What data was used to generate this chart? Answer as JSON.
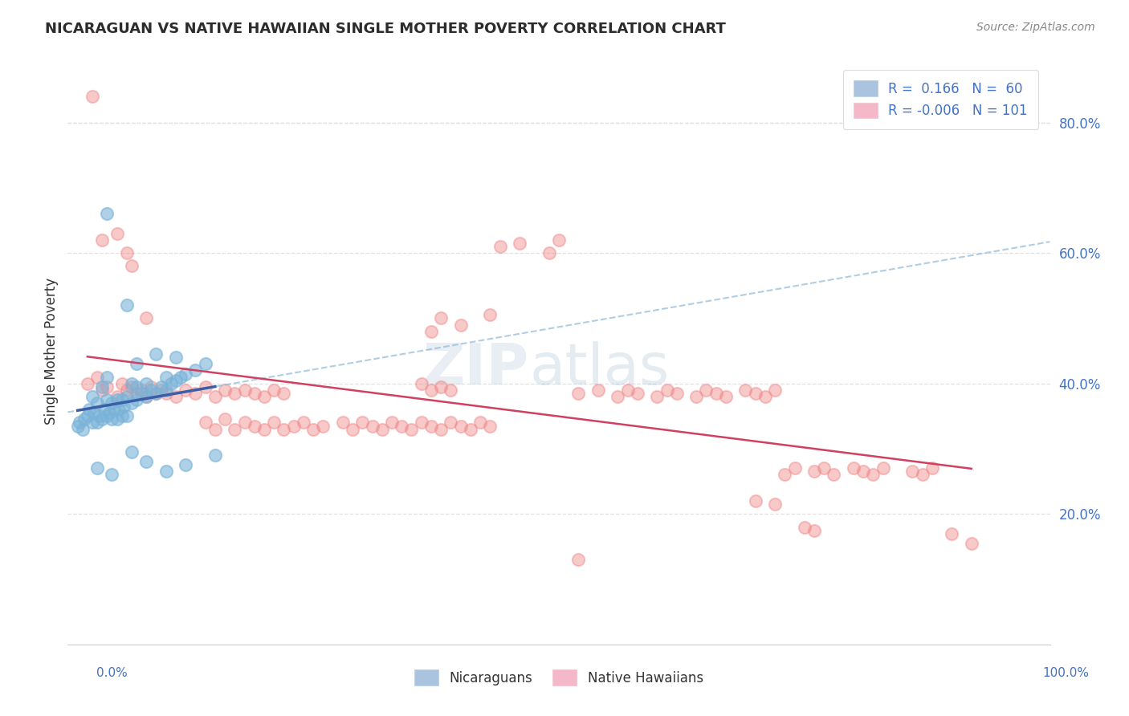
{
  "title": "NICARAGUAN VS NATIVE HAWAIIAN SINGLE MOTHER POVERTY CORRELATION CHART",
  "source": "Source: ZipAtlas.com",
  "ylabel": "Single Mother Poverty",
  "y_ticks": [
    0.2,
    0.4,
    0.6,
    0.8
  ],
  "y_tick_labels": [
    "20.0%",
    "40.0%",
    "60.0%",
    "80.0%"
  ],
  "xlim": [
    0.0,
    1.0
  ],
  "ylim": [
    0.0,
    0.9
  ],
  "watermark": "ZIPatlas",
  "blue_color": "#7ab3d8",
  "pink_color": "#f08888",
  "blue_line_color": "#3a5fa8",
  "pink_line_color": "#d04060",
  "tick_color": "#4472c4",
  "grid_color": "#e0e0e0",
  "nicaraguan_points": [
    [
      0.01,
      0.335
    ],
    [
      0.012,
      0.34
    ],
    [
      0.015,
      0.33
    ],
    [
      0.017,
      0.345
    ],
    [
      0.02,
      0.35
    ],
    [
      0.022,
      0.36
    ],
    [
      0.025,
      0.34
    ],
    [
      0.025,
      0.38
    ],
    [
      0.027,
      0.355
    ],
    [
      0.03,
      0.34
    ],
    [
      0.03,
      0.37
    ],
    [
      0.032,
      0.35
    ],
    [
      0.035,
      0.345
    ],
    [
      0.035,
      0.395
    ],
    [
      0.037,
      0.36
    ],
    [
      0.04,
      0.35
    ],
    [
      0.04,
      0.375
    ],
    [
      0.04,
      0.41
    ],
    [
      0.042,
      0.355
    ],
    [
      0.045,
      0.345
    ],
    [
      0.045,
      0.37
    ],
    [
      0.047,
      0.36
    ],
    [
      0.05,
      0.345
    ],
    [
      0.05,
      0.375
    ],
    [
      0.052,
      0.36
    ],
    [
      0.055,
      0.35
    ],
    [
      0.055,
      0.375
    ],
    [
      0.057,
      0.365
    ],
    [
      0.06,
      0.35
    ],
    [
      0.06,
      0.38
    ],
    [
      0.065,
      0.37
    ],
    [
      0.065,
      0.4
    ],
    [
      0.07,
      0.375
    ],
    [
      0.07,
      0.395
    ],
    [
      0.075,
      0.385
    ],
    [
      0.08,
      0.38
    ],
    [
      0.08,
      0.4
    ],
    [
      0.085,
      0.39
    ],
    [
      0.09,
      0.385
    ],
    [
      0.095,
      0.395
    ],
    [
      0.1,
      0.39
    ],
    [
      0.1,
      0.41
    ],
    [
      0.105,
      0.4
    ],
    [
      0.11,
      0.405
    ],
    [
      0.115,
      0.41
    ],
    [
      0.12,
      0.415
    ],
    [
      0.13,
      0.42
    ],
    [
      0.14,
      0.43
    ],
    [
      0.04,
      0.66
    ],
    [
      0.06,
      0.52
    ],
    [
      0.03,
      0.27
    ],
    [
      0.045,
      0.26
    ],
    [
      0.065,
      0.295
    ],
    [
      0.08,
      0.28
    ],
    [
      0.1,
      0.265
    ],
    [
      0.12,
      0.275
    ],
    [
      0.15,
      0.29
    ],
    [
      0.07,
      0.43
    ],
    [
      0.09,
      0.445
    ],
    [
      0.11,
      0.44
    ]
  ],
  "native_hawaiian_points": [
    [
      0.025,
      0.84
    ],
    [
      0.035,
      0.62
    ],
    [
      0.05,
      0.63
    ],
    [
      0.06,
      0.6
    ],
    [
      0.065,
      0.58
    ],
    [
      0.08,
      0.5
    ],
    [
      0.02,
      0.4
    ],
    [
      0.03,
      0.41
    ],
    [
      0.035,
      0.39
    ],
    [
      0.04,
      0.395
    ],
    [
      0.05,
      0.38
    ],
    [
      0.055,
      0.4
    ],
    [
      0.06,
      0.39
    ],
    [
      0.065,
      0.395
    ],
    [
      0.07,
      0.385
    ],
    [
      0.075,
      0.39
    ],
    [
      0.08,
      0.38
    ],
    [
      0.085,
      0.395
    ],
    [
      0.09,
      0.385
    ],
    [
      0.095,
      0.39
    ],
    [
      0.1,
      0.385
    ],
    [
      0.11,
      0.38
    ],
    [
      0.12,
      0.39
    ],
    [
      0.13,
      0.385
    ],
    [
      0.14,
      0.395
    ],
    [
      0.15,
      0.38
    ],
    [
      0.16,
      0.39
    ],
    [
      0.17,
      0.385
    ],
    [
      0.18,
      0.39
    ],
    [
      0.19,
      0.385
    ],
    [
      0.2,
      0.38
    ],
    [
      0.21,
      0.39
    ],
    [
      0.22,
      0.385
    ],
    [
      0.14,
      0.34
    ],
    [
      0.15,
      0.33
    ],
    [
      0.16,
      0.345
    ],
    [
      0.17,
      0.33
    ],
    [
      0.18,
      0.34
    ],
    [
      0.19,
      0.335
    ],
    [
      0.2,
      0.33
    ],
    [
      0.21,
      0.34
    ],
    [
      0.22,
      0.33
    ],
    [
      0.23,
      0.335
    ],
    [
      0.24,
      0.34
    ],
    [
      0.25,
      0.33
    ],
    [
      0.26,
      0.335
    ],
    [
      0.28,
      0.34
    ],
    [
      0.29,
      0.33
    ],
    [
      0.3,
      0.34
    ],
    [
      0.31,
      0.335
    ],
    [
      0.32,
      0.33
    ],
    [
      0.33,
      0.34
    ],
    [
      0.34,
      0.335
    ],
    [
      0.35,
      0.33
    ],
    [
      0.36,
      0.34
    ],
    [
      0.37,
      0.335
    ],
    [
      0.38,
      0.33
    ],
    [
      0.39,
      0.34
    ],
    [
      0.4,
      0.335
    ],
    [
      0.41,
      0.33
    ],
    [
      0.42,
      0.34
    ],
    [
      0.43,
      0.335
    ],
    [
      0.37,
      0.48
    ],
    [
      0.38,
      0.5
    ],
    [
      0.4,
      0.49
    ],
    [
      0.43,
      0.505
    ],
    [
      0.44,
      0.61
    ],
    [
      0.46,
      0.615
    ],
    [
      0.49,
      0.6
    ],
    [
      0.5,
      0.62
    ],
    [
      0.36,
      0.4
    ],
    [
      0.37,
      0.39
    ],
    [
      0.38,
      0.395
    ],
    [
      0.39,
      0.39
    ],
    [
      0.52,
      0.385
    ],
    [
      0.54,
      0.39
    ],
    [
      0.56,
      0.38
    ],
    [
      0.57,
      0.39
    ],
    [
      0.58,
      0.385
    ],
    [
      0.6,
      0.38
    ],
    [
      0.61,
      0.39
    ],
    [
      0.62,
      0.385
    ],
    [
      0.64,
      0.38
    ],
    [
      0.65,
      0.39
    ],
    [
      0.66,
      0.385
    ],
    [
      0.67,
      0.38
    ],
    [
      0.69,
      0.39
    ],
    [
      0.7,
      0.385
    ],
    [
      0.71,
      0.38
    ],
    [
      0.72,
      0.39
    ],
    [
      0.73,
      0.26
    ],
    [
      0.74,
      0.27
    ],
    [
      0.76,
      0.265
    ],
    [
      0.77,
      0.27
    ],
    [
      0.78,
      0.26
    ],
    [
      0.8,
      0.27
    ],
    [
      0.81,
      0.265
    ],
    [
      0.82,
      0.26
    ],
    [
      0.83,
      0.27
    ],
    [
      0.86,
      0.265
    ],
    [
      0.87,
      0.26
    ],
    [
      0.88,
      0.27
    ],
    [
      0.7,
      0.22
    ],
    [
      0.72,
      0.215
    ],
    [
      0.75,
      0.18
    ],
    [
      0.76,
      0.175
    ],
    [
      0.9,
      0.17
    ],
    [
      0.92,
      0.155
    ],
    [
      0.52,
      0.13
    ]
  ]
}
